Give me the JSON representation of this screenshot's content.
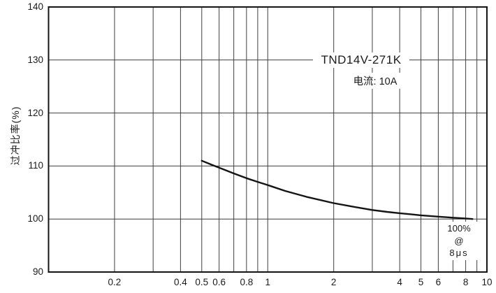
{
  "chart_data": {
    "type": "line",
    "title": "",
    "ylabel": "过冲比率(%)",
    "xlabel": "",
    "x_scale": "log",
    "x_range": [
      0.1,
      10
    ],
    "y_range": [
      90,
      140
    ],
    "grid": true,
    "x_gridlines": [
      0.2,
      0.3,
      0.4,
      0.5,
      0.6,
      0.7,
      0.8,
      0.9,
      1,
      2,
      3,
      4,
      5,
      6,
      7,
      8,
      9,
      10
    ],
    "y_gridlines": [
      100,
      110,
      120,
      130
    ],
    "x_ticks": [
      {
        "v": 0.2,
        "label": "0.2"
      },
      {
        "v": 0.4,
        "label": "0.4"
      },
      {
        "v": 0.5,
        "label": "0.5"
      },
      {
        "v": 0.6,
        "label": "0.6"
      },
      {
        "v": 0.8,
        "label": "0.8"
      },
      {
        "v": 1,
        "label": "1"
      },
      {
        "v": 2,
        "label": "2"
      },
      {
        "v": 4,
        "label": "4"
      },
      {
        "v": 5,
        "label": "5"
      },
      {
        "v": 6,
        "label": "6"
      },
      {
        "v": 8,
        "label": "8"
      },
      {
        "v": 10,
        "label": "10"
      }
    ],
    "y_ticks": [
      {
        "v": 90,
        "label": "90"
      },
      {
        "v": 100,
        "label": "100"
      },
      {
        "v": 110,
        "label": "110"
      },
      {
        "v": 120,
        "label": "120"
      },
      {
        "v": 130,
        "label": "130"
      },
      {
        "v": 140,
        "label": "140"
      }
    ],
    "series": [
      {
        "name": "TND14V-271K overshoot ratio",
        "points": [
          [
            0.5,
            111.0
          ],
          [
            0.55,
            110.3
          ],
          [
            0.6,
            109.7
          ],
          [
            0.7,
            108.6
          ],
          [
            0.8,
            107.7
          ],
          [
            0.9,
            107.0
          ],
          [
            1.0,
            106.4
          ],
          [
            1.2,
            105.3
          ],
          [
            1.5,
            104.2
          ],
          [
            2.0,
            103.0
          ],
          [
            2.5,
            102.25
          ],
          [
            3.0,
            101.7
          ],
          [
            3.5,
            101.35
          ],
          [
            4.0,
            101.1
          ],
          [
            4.5,
            100.9
          ],
          [
            5.0,
            100.7
          ],
          [
            6.0,
            100.45
          ],
          [
            7.0,
            100.25
          ],
          [
            8.0,
            100.1
          ],
          [
            8.6,
            100.0
          ]
        ]
      }
    ],
    "annotations": {
      "part_number": "TND14V-271K",
      "current_label": "电流: 10A",
      "endpoint_lines": [
        "100%",
        "@",
        "8μs"
      ]
    },
    "colors": {
      "line": "#141414",
      "grid": "#3f3f3f",
      "border": "#141414",
      "text": "#1a1a1a",
      "background": "#ffffff"
    }
  }
}
